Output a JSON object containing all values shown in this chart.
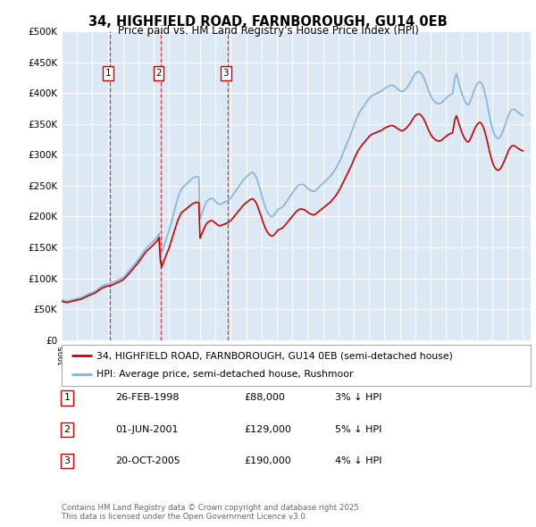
{
  "title": "34, HIGHFIELD ROAD, FARNBOROUGH, GU14 0EB",
  "subtitle": "Price paid vs. HM Land Registry's House Price Index (HPI)",
  "ylim": [
    0,
    500000
  ],
  "yticks": [
    0,
    50000,
    100000,
    150000,
    200000,
    250000,
    300000,
    350000,
    400000,
    450000,
    500000
  ],
  "ytick_labels": [
    "£0",
    "£50K",
    "£100K",
    "£150K",
    "£200K",
    "£250K",
    "£300K",
    "£350K",
    "£400K",
    "£450K",
    "£500K"
  ],
  "xlim_start": 1995.0,
  "xlim_end": 2025.5,
  "background_color": "#ffffff",
  "plot_bg_color": "#dce9f5",
  "grid_color": "#ffffff",
  "sale_color": "#cc0000",
  "hpi_color": "#85b4d9",
  "sale_label": "34, HIGHFIELD ROAD, FARNBOROUGH, GU14 0EB (semi-detached house)",
  "hpi_label": "HPI: Average price, semi-detached house, Rushmoor",
  "transactions": [
    {
      "num": 1,
      "date": "26-FEB-1998",
      "price": 88000,
      "pct": "3%",
      "year": 1998.15
    },
    {
      "num": 2,
      "date": "01-JUN-2001",
      "price": 129000,
      "pct": "5%",
      "year": 2001.42
    },
    {
      "num": 3,
      "date": "20-OCT-2005",
      "price": 190000,
      "pct": "4%",
      "year": 2005.8
    }
  ],
  "footer": "Contains HM Land Registry data © Crown copyright and database right 2025.\nThis data is licensed under the Open Government Licence v3.0.",
  "hpi_data_x": [
    1995.0,
    1995.08,
    1995.17,
    1995.25,
    1995.33,
    1995.42,
    1995.5,
    1995.58,
    1995.67,
    1995.75,
    1995.83,
    1995.92,
    1996.0,
    1996.08,
    1996.17,
    1996.25,
    1996.33,
    1996.42,
    1996.5,
    1996.58,
    1996.67,
    1996.75,
    1996.83,
    1996.92,
    1997.0,
    1997.08,
    1997.17,
    1997.25,
    1997.33,
    1997.42,
    1997.5,
    1997.58,
    1997.67,
    1997.75,
    1997.83,
    1997.92,
    1998.0,
    1998.08,
    1998.17,
    1998.25,
    1998.33,
    1998.42,
    1998.5,
    1998.58,
    1998.67,
    1998.75,
    1998.83,
    1998.92,
    1999.0,
    1999.08,
    1999.17,
    1999.25,
    1999.33,
    1999.42,
    1999.5,
    1999.58,
    1999.67,
    1999.75,
    1999.83,
    1999.92,
    2000.0,
    2000.08,
    2000.17,
    2000.25,
    2000.33,
    2000.42,
    2000.5,
    2000.58,
    2000.67,
    2000.75,
    2000.83,
    2000.92,
    2001.0,
    2001.08,
    2001.17,
    2001.25,
    2001.33,
    2001.42,
    2001.5,
    2001.58,
    2001.67,
    2001.75,
    2001.83,
    2001.92,
    2002.0,
    2002.08,
    2002.17,
    2002.25,
    2002.33,
    2002.42,
    2002.5,
    2002.58,
    2002.67,
    2002.75,
    2002.83,
    2002.92,
    2003.0,
    2003.08,
    2003.17,
    2003.25,
    2003.33,
    2003.42,
    2003.5,
    2003.58,
    2003.67,
    2003.75,
    2003.83,
    2003.92,
    2004.0,
    2004.08,
    2004.17,
    2004.25,
    2004.33,
    2004.42,
    2004.5,
    2004.58,
    2004.67,
    2004.75,
    2004.83,
    2004.92,
    2005.0,
    2005.08,
    2005.17,
    2005.25,
    2005.33,
    2005.42,
    2005.5,
    2005.58,
    2005.67,
    2005.75,
    2005.83,
    2005.92,
    2006.0,
    2006.08,
    2006.17,
    2006.25,
    2006.33,
    2006.42,
    2006.5,
    2006.58,
    2006.67,
    2006.75,
    2006.83,
    2006.92,
    2007.0,
    2007.08,
    2007.17,
    2007.25,
    2007.33,
    2007.42,
    2007.5,
    2007.58,
    2007.67,
    2007.75,
    2007.83,
    2007.92,
    2008.0,
    2008.08,
    2008.17,
    2008.25,
    2008.33,
    2008.42,
    2008.5,
    2008.58,
    2008.67,
    2008.75,
    2008.83,
    2008.92,
    2009.0,
    2009.08,
    2009.17,
    2009.25,
    2009.33,
    2009.42,
    2009.5,
    2009.58,
    2009.67,
    2009.75,
    2009.83,
    2009.92,
    2010.0,
    2010.08,
    2010.17,
    2010.25,
    2010.33,
    2010.42,
    2010.5,
    2010.58,
    2010.67,
    2010.75,
    2010.83,
    2010.92,
    2011.0,
    2011.08,
    2011.17,
    2011.25,
    2011.33,
    2011.42,
    2011.5,
    2011.58,
    2011.67,
    2011.75,
    2011.83,
    2011.92,
    2012.0,
    2012.08,
    2012.17,
    2012.25,
    2012.33,
    2012.42,
    2012.5,
    2012.58,
    2012.67,
    2012.75,
    2012.83,
    2012.92,
    2013.0,
    2013.08,
    2013.17,
    2013.25,
    2013.33,
    2013.42,
    2013.5,
    2013.58,
    2013.67,
    2013.75,
    2013.83,
    2013.92,
    2014.0,
    2014.08,
    2014.17,
    2014.25,
    2014.33,
    2014.42,
    2014.5,
    2014.58,
    2014.67,
    2014.75,
    2014.83,
    2014.92,
    2015.0,
    2015.08,
    2015.17,
    2015.25,
    2015.33,
    2015.42,
    2015.5,
    2015.58,
    2015.67,
    2015.75,
    2015.83,
    2015.92,
    2016.0,
    2016.08,
    2016.17,
    2016.25,
    2016.33,
    2016.42,
    2016.5,
    2016.58,
    2016.67,
    2016.75,
    2016.83,
    2016.92,
    2017.0,
    2017.08,
    2017.17,
    2017.25,
    2017.33,
    2017.42,
    2017.5,
    2017.58,
    2017.67,
    2017.75,
    2017.83,
    2017.92,
    2018.0,
    2018.08,
    2018.17,
    2018.25,
    2018.33,
    2018.42,
    2018.5,
    2018.58,
    2018.67,
    2018.75,
    2018.83,
    2018.92,
    2019.0,
    2019.08,
    2019.17,
    2019.25,
    2019.33,
    2019.42,
    2019.5,
    2019.58,
    2019.67,
    2019.75,
    2019.83,
    2019.92,
    2020.0,
    2020.08,
    2020.17,
    2020.25,
    2020.33,
    2020.42,
    2020.5,
    2020.58,
    2020.67,
    2020.75,
    2020.83,
    2020.92,
    2021.0,
    2021.08,
    2021.17,
    2021.25,
    2021.33,
    2021.42,
    2021.5,
    2021.58,
    2021.67,
    2021.75,
    2021.83,
    2021.92,
    2022.0,
    2022.08,
    2022.17,
    2022.25,
    2022.33,
    2022.42,
    2022.5,
    2022.58,
    2022.67,
    2022.75,
    2022.83,
    2022.92,
    2023.0,
    2023.08,
    2023.17,
    2023.25,
    2023.33,
    2023.42,
    2023.5,
    2023.58,
    2023.67,
    2023.75,
    2023.83,
    2023.92,
    2024.0,
    2024.08,
    2024.17,
    2024.25,
    2024.33,
    2024.42,
    2024.5,
    2024.58,
    2024.67,
    2024.75,
    2024.83,
    2024.92,
    2025.0
  ],
  "hpi_data_y": [
    65000,
    64500,
    64000,
    63500,
    63000,
    63500,
    64000,
    64500,
    65000,
    65500,
    66000,
    66500,
    67000,
    67500,
    68000,
    68500,
    69500,
    70500,
    71500,
    72500,
    73500,
    74500,
    75500,
    76500,
    77000,
    78000,
    79000,
    80500,
    82000,
    83500,
    85000,
    86500,
    87500,
    88500,
    89500,
    90000,
    90500,
    91000,
    91500,
    92000,
    93000,
    94000,
    95000,
    96000,
    97000,
    98000,
    99000,
    100000,
    101500,
    103500,
    105500,
    108000,
    110500,
    113000,
    115500,
    118000,
    120500,
    123000,
    125500,
    128000,
    131000,
    134000,
    137000,
    140000,
    143000,
    146000,
    149000,
    151000,
    153000,
    155000,
    157000,
    159000,
    161000,
    163500,
    166000,
    169000,
    172500,
    134000,
    140000,
    147000,
    154000,
    160000,
    166000,
    172000,
    178000,
    186000,
    194000,
    202000,
    210000,
    218000,
    225000,
    232000,
    238000,
    243000,
    246000,
    248000,
    250000,
    252000,
    254000,
    256000,
    258000,
    260000,
    262000,
    263000,
    264000,
    265000,
    265000,
    264000,
    196000,
    202000,
    208000,
    214000,
    219000,
    224000,
    226000,
    228000,
    229000,
    230000,
    229000,
    227000,
    225000,
    223000,
    221000,
    220000,
    220000,
    221000,
    222000,
    223000,
    224000,
    225000,
    226000,
    228000,
    230000,
    233000,
    236000,
    239000,
    242000,
    245000,
    248000,
    251000,
    254000,
    257000,
    260000,
    262000,
    264000,
    266000,
    268000,
    270000,
    271000,
    272000,
    270000,
    267000,
    263000,
    257000,
    250000,
    243000,
    236000,
    228000,
    221000,
    215000,
    210000,
    206000,
    203000,
    201000,
    200000,
    201000,
    203000,
    206000,
    209000,
    212000,
    213000,
    214000,
    215000,
    217000,
    220000,
    223000,
    226000,
    229000,
    232000,
    235000,
    238000,
    241000,
    244000,
    247000,
    249000,
    251000,
    252000,
    252000,
    252000,
    251000,
    250000,
    248000,
    246000,
    244000,
    243000,
    242000,
    241000,
    241000,
    242000,
    244000,
    246000,
    248000,
    250000,
    252000,
    254000,
    256000,
    258000,
    260000,
    262000,
    264000,
    266000,
    269000,
    272000,
    275000,
    278000,
    282000,
    286000,
    290000,
    295000,
    300000,
    305000,
    310000,
    315000,
    320000,
    325000,
    330000,
    335000,
    341000,
    347000,
    353000,
    358000,
    363000,
    367000,
    371000,
    374000,
    377000,
    380000,
    383000,
    386000,
    389000,
    392000,
    394000,
    396000,
    397000,
    398000,
    399000,
    400000,
    401000,
    402000,
    403000,
    404000,
    406000,
    408000,
    409000,
    410000,
    411000,
    412000,
    413000,
    413000,
    412000,
    411000,
    409000,
    407000,
    406000,
    404000,
    403000,
    403000,
    404000,
    406000,
    408000,
    411000,
    414000,
    417000,
    421000,
    425000,
    429000,
    432000,
    434000,
    435000,
    435000,
    434000,
    431000,
    428000,
    423000,
    418000,
    412000,
    406000,
    401000,
    396000,
    392000,
    389000,
    387000,
    385000,
    384000,
    383000,
    383000,
    384000,
    386000,
    388000,
    390000,
    392000,
    394000,
    396000,
    397000,
    398000,
    399000,
    412000,
    425000,
    432000,
    425000,
    417000,
    409000,
    402000,
    396000,
    390000,
    386000,
    383000,
    381000,
    383000,
    387000,
    393000,
    399000,
    405000,
    410000,
    414000,
    417000,
    419000,
    418000,
    415000,
    410000,
    403000,
    394000,
    384000,
    373000,
    362000,
    352000,
    344000,
    337000,
    332000,
    329000,
    327000,
    327000,
    329000,
    332000,
    337000,
    342000,
    348000,
    354000,
    360000,
    366000,
    370000,
    373000,
    374000,
    374000,
    373000,
    371000,
    369000,
    368000,
    366000,
    365000,
    364000
  ]
}
